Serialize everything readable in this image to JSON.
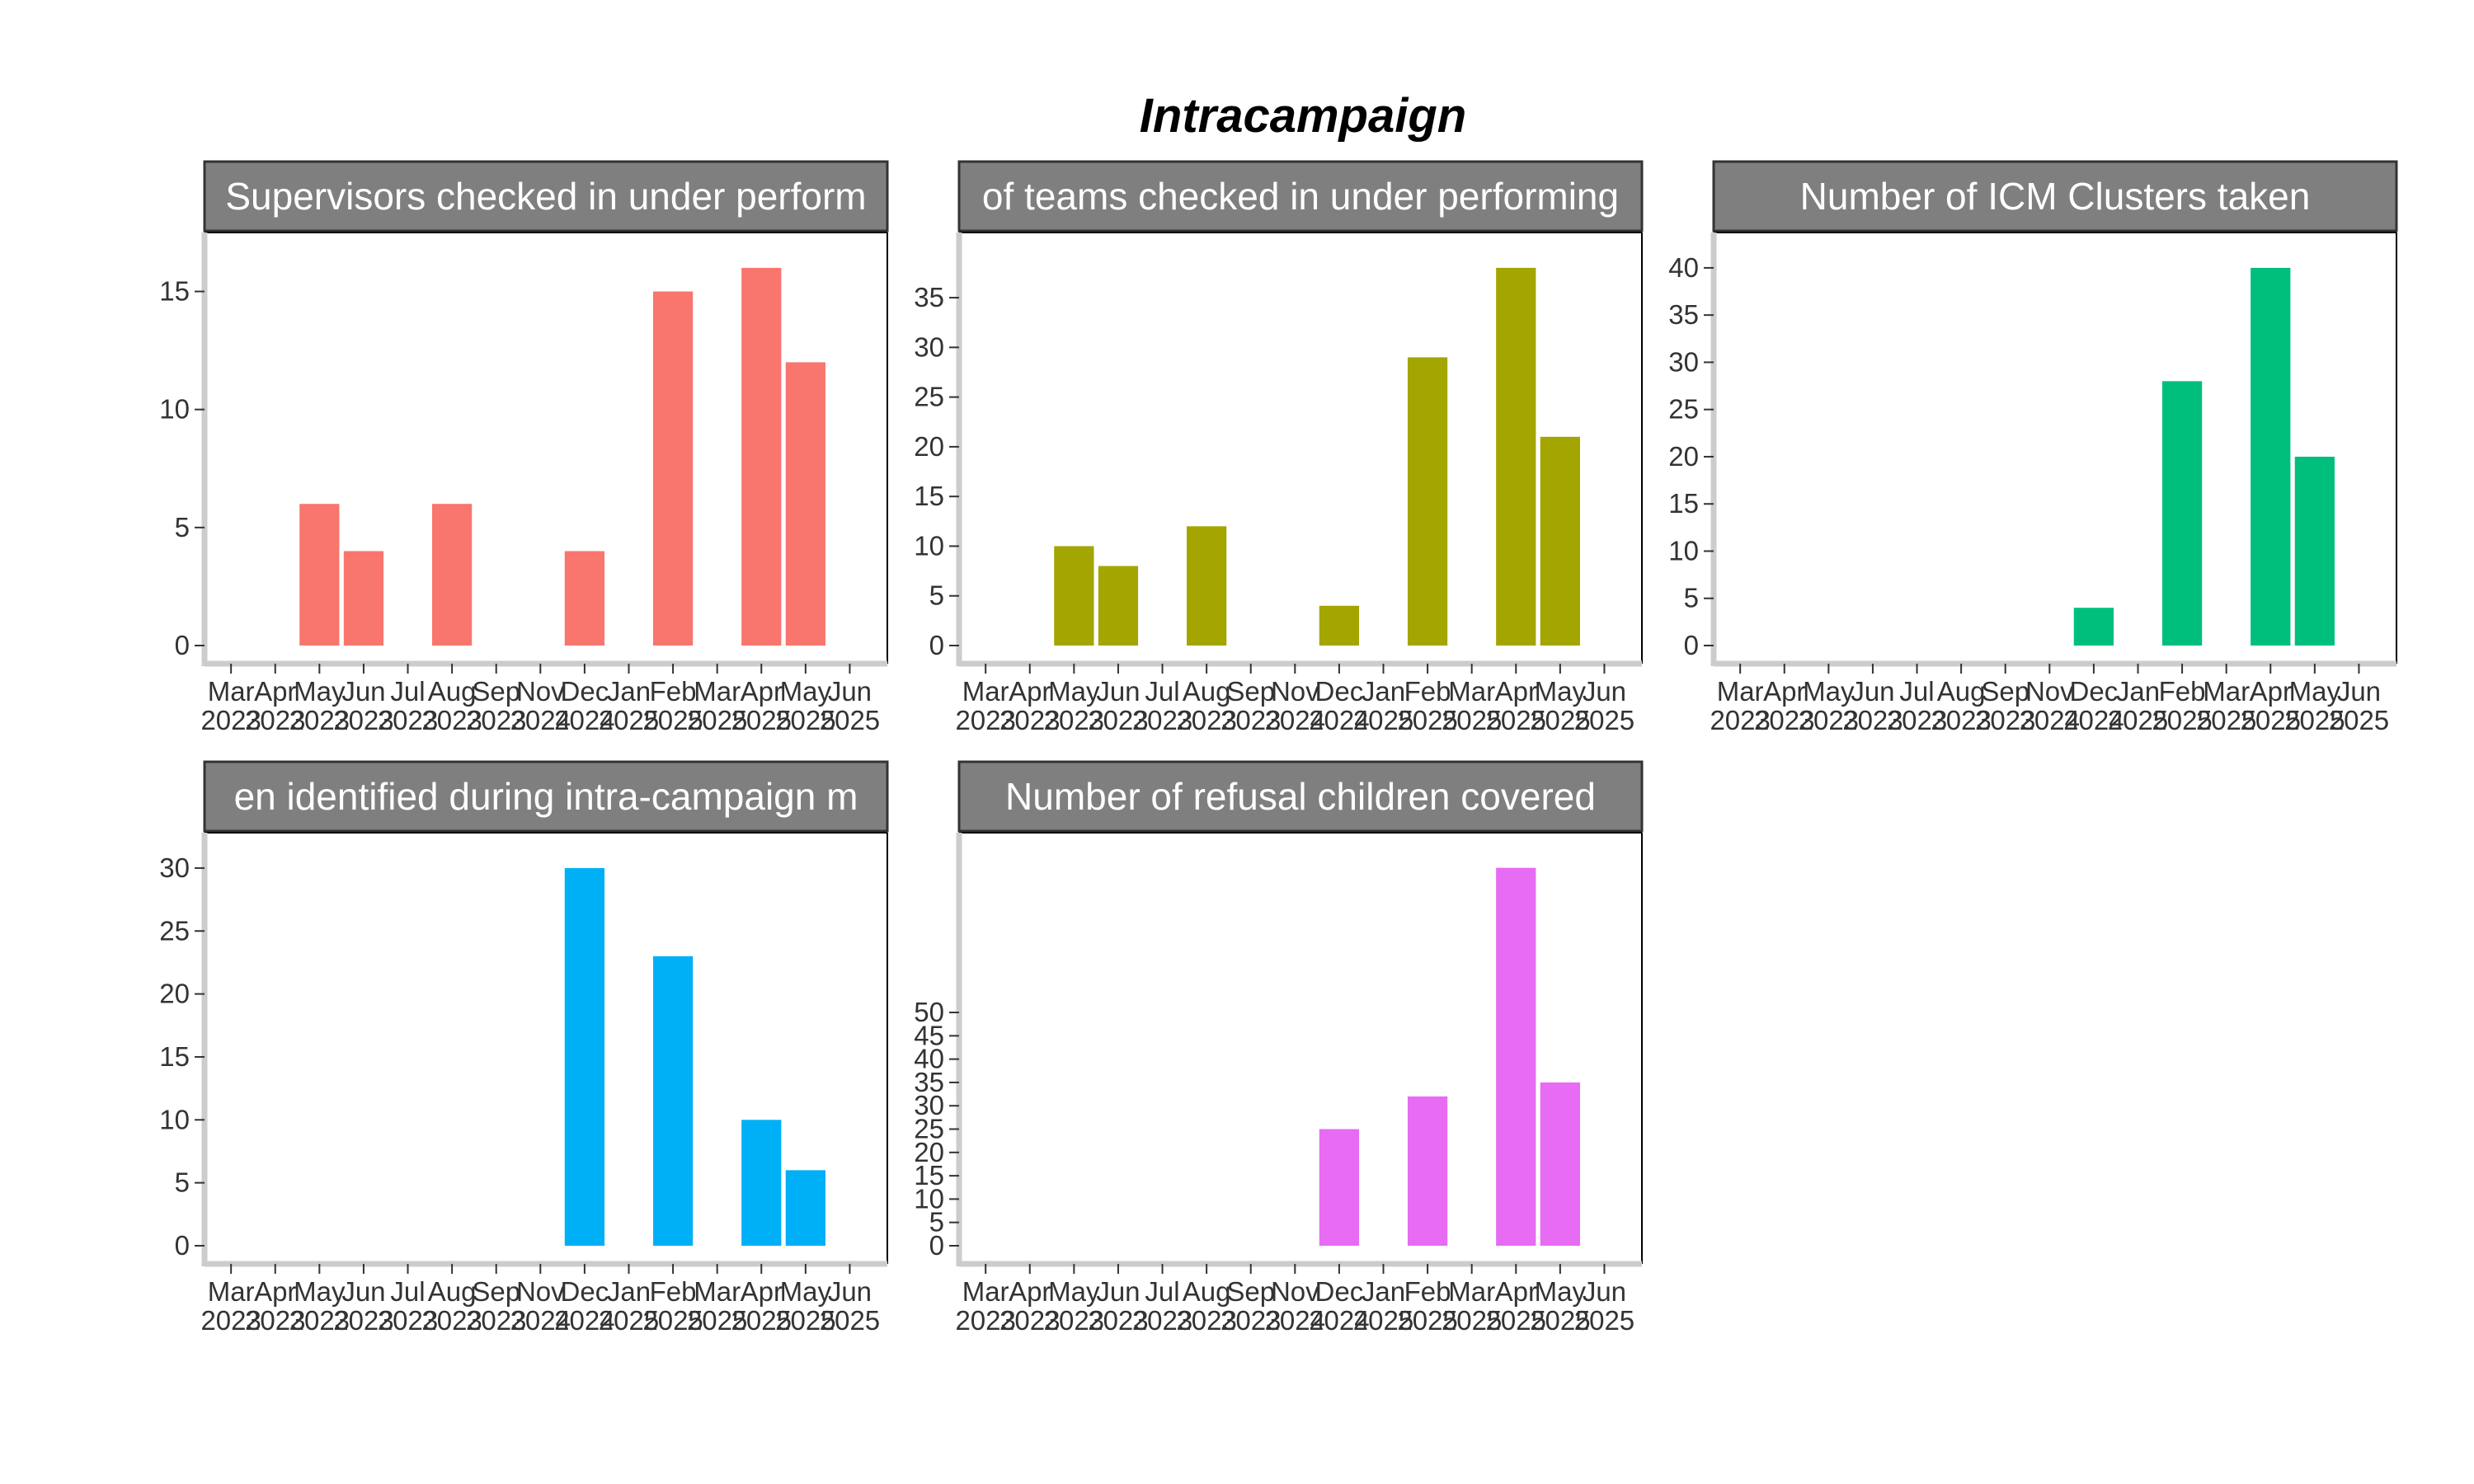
{
  "title": "Intracampaign",
  "x_ticks": [
    {
      "month": "Mar",
      "year": "2023"
    },
    {
      "month": "Apr",
      "year": "2023"
    },
    {
      "month": "May",
      "year": "2023"
    },
    {
      "month": "Jun",
      "year": "2023"
    },
    {
      "month": "Jul",
      "year": "2023"
    },
    {
      "month": "Aug",
      "year": "2023"
    },
    {
      "month": "Sep",
      "year": "2023"
    },
    {
      "month": "Nov",
      "year": "2024"
    },
    {
      "month": "Dec",
      "year": "2024"
    },
    {
      "month": "Jan",
      "year": "2025"
    },
    {
      "month": "Feb",
      "year": "2025"
    },
    {
      "month": "Mar",
      "year": "2025"
    },
    {
      "month": "Apr",
      "year": "2025"
    },
    {
      "month": "May",
      "year": "2025"
    },
    {
      "month": "Jun",
      "year": "2025"
    }
  ],
  "chart_data": [
    {
      "type": "bar",
      "panel_title": "Supervisors checked in under perform",
      "color": "#F8766D",
      "categories": [
        "May 2023",
        "Jun 2023",
        "Aug 2023",
        "Dec 2024",
        "Feb 2025",
        "Apr 2025",
        "May 2025"
      ],
      "values": [
        6,
        4,
        6,
        4,
        15,
        16,
        12
      ],
      "ylim": [
        0,
        16.8
      ],
      "yticks": [
        0,
        5,
        10,
        15
      ]
    },
    {
      "type": "bar",
      "panel_title": "of teams checked in under performing",
      "color": "#A3A500",
      "categories": [
        "May 2023",
        "Jun 2023",
        "Aug 2023",
        "Dec 2024",
        "Feb 2025",
        "Apr 2025",
        "May 2025"
      ],
      "values": [
        10,
        8,
        12,
        4,
        29,
        38,
        21
      ],
      "ylim": [
        0,
        39.9
      ],
      "yticks": [
        0,
        5,
        10,
        15,
        20,
        25,
        30,
        35
      ]
    },
    {
      "type": "bar",
      "panel_title": "Number of ICM Clusters taken",
      "color": "#00BF7D",
      "categories": [
        "Dec 2024",
        "Feb 2025",
        "Apr 2025",
        "May 2025"
      ],
      "values": [
        4,
        28,
        40,
        20
      ],
      "ylim": [
        0,
        42
      ],
      "yticks": [
        0,
        5,
        10,
        15,
        20,
        25,
        30,
        35,
        40
      ]
    },
    {
      "type": "bar",
      "panel_title": "en identified during intra-campaign m",
      "color": "#00B0F6",
      "categories": [
        "Dec 2024",
        "Feb 2025",
        "Apr 2025",
        "May 2025"
      ],
      "values": [
        30,
        23,
        10,
        6
      ],
      "ylim": [
        0,
        31.5
      ],
      "yticks": [
        0,
        5,
        10,
        15,
        20,
        25,
        30
      ]
    },
    {
      "type": "bar",
      "panel_title": "Number of refusal children covered",
      "color": "#E76BF3",
      "categories": [
        "Dec 2024",
        "Feb 2025",
        "Apr 2025",
        "May 2025"
      ],
      "values": [
        25,
        32,
        81,
        35
      ],
      "ylim": [
        0,
        85
      ],
      "yticks": [
        0,
        5,
        10,
        15,
        20,
        25,
        30,
        35,
        40,
        45,
        50
      ]
    }
  ]
}
